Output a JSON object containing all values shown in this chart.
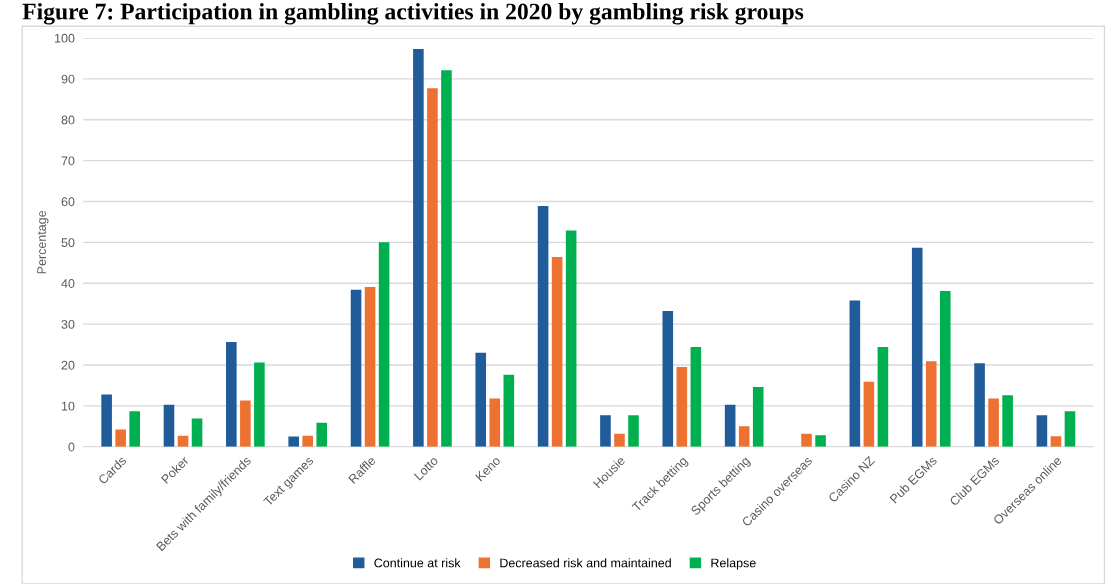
{
  "chart_data": {
    "type": "bar",
    "title": "Figure 7: Participation in gambling activities in 2020 by gambling risk groups",
    "ylabel": "Percentage",
    "categories": [
      "Cards",
      "Poker",
      "Bets with family/friends",
      "Text games",
      "Raffle",
      "Lotto",
      "Keno",
      null,
      "Housie",
      "Track betting",
      "Sports betting",
      "Casino overseas",
      "Casino NZ",
      "Pub EGMs",
      "Club EGMs",
      "Overseas online"
    ],
    "series": [
      {
        "name": "Continue at risk",
        "color": "#1f5c99",
        "values": [
          12.8,
          10.3,
          25.6,
          2.5,
          38.4,
          97.3,
          23.0,
          58.9,
          7.7,
          33.2,
          10.3,
          null,
          35.8,
          48.7,
          20.4,
          7.7
        ]
      },
      {
        "name": "Decreased risk and maintained",
        "color": "#ed7130",
        "values": [
          4.2,
          2.7,
          11.3,
          2.7,
          39.1,
          87.7,
          11.8,
          46.4,
          3.2,
          19.5,
          5.0,
          3.2,
          15.9,
          20.9,
          11.8,
          2.6
        ]
      },
      {
        "name": "Relapse",
        "color": "#00b050",
        "values": [
          8.7,
          6.9,
          20.6,
          5.9,
          50.0,
          92.1,
          17.6,
          52.9,
          7.7,
          24.4,
          14.6,
          2.8,
          24.4,
          38.1,
          12.6,
          8.7
        ]
      }
    ],
    "ylim": [
      0,
      100
    ],
    "yticks": [
      0,
      10,
      20,
      30,
      40,
      50,
      60,
      70,
      80,
      90,
      100
    ],
    "grid": "y",
    "legend": "bottom"
  }
}
